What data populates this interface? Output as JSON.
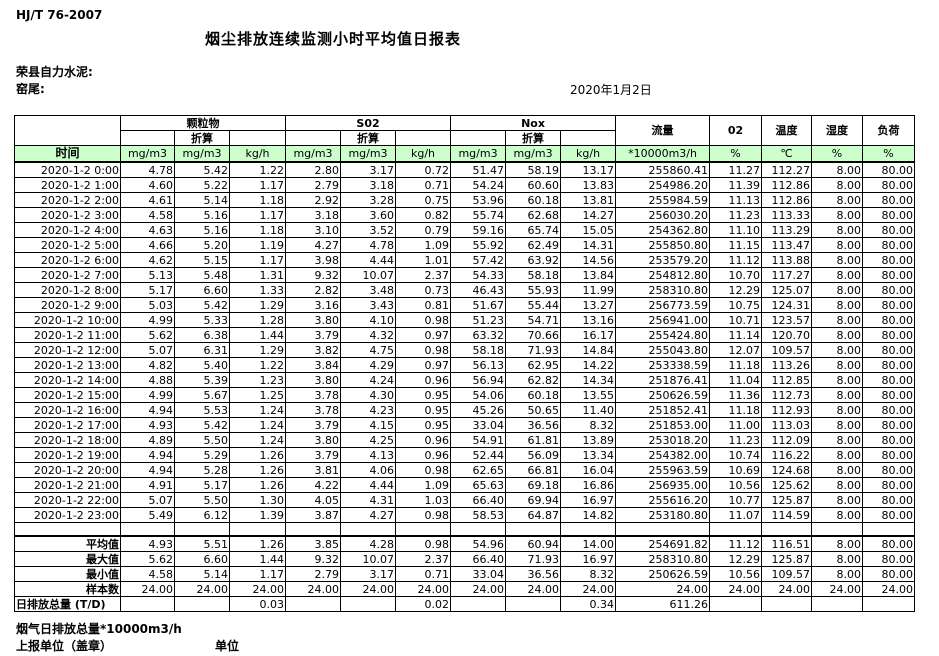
{
  "meta": {
    "standard_no": "HJ/T 76-2007",
    "title": "烟尘排放连续监测小时平均值日报表",
    "company": "荣县自力水泥:",
    "location": "窑尾:",
    "date": "2020年1月2日"
  },
  "table": {
    "time_label": "时间",
    "converted_label": "折算",
    "groups": {
      "pm": "颗粒物",
      "so2": "S02",
      "nox": "Nox",
      "flow": "流量",
      "o2": "02",
      "temp": "温度",
      "humidity": "湿度",
      "load": "负荷"
    },
    "units": [
      "mg/m3",
      "mg/m3",
      "kg/h",
      "mg/m3",
      "mg/m3",
      "kg/h",
      "mg/m3",
      "mg/m3",
      "kg/h",
      "*10000m3/h",
      "%",
      "℃",
      "%",
      "%"
    ],
    "rows": [
      {
        "time": "2020-1-2 0:00",
        "values": [
          "4.78",
          "5.42",
          "1.22",
          "2.80",
          "3.17",
          "0.72",
          "51.47",
          "58.19",
          "13.17",
          "255860.41",
          "11.27",
          "112.27",
          "8.00",
          "80.00"
        ]
      },
      {
        "time": "2020-1-2 1:00",
        "values": [
          "4.60",
          "5.22",
          "1.17",
          "2.79",
          "3.18",
          "0.71",
          "54.24",
          "60.60",
          "13.83",
          "254986.20",
          "11.39",
          "112.86",
          "8.00",
          "80.00"
        ]
      },
      {
        "time": "2020-1-2 2:00",
        "values": [
          "4.61",
          "5.14",
          "1.18",
          "2.92",
          "3.28",
          "0.75",
          "53.96",
          "60.18",
          "13.81",
          "255984.59",
          "11.13",
          "112.86",
          "8.00",
          "80.00"
        ]
      },
      {
        "time": "2020-1-2 3:00",
        "values": [
          "4.58",
          "5.16",
          "1.17",
          "3.18",
          "3.60",
          "0.82",
          "55.74",
          "62.68",
          "14.27",
          "256030.20",
          "11.23",
          "113.33",
          "8.00",
          "80.00"
        ]
      },
      {
        "time": "2020-1-2 4:00",
        "values": [
          "4.63",
          "5.16",
          "1.18",
          "3.10",
          "3.52",
          "0.79",
          "59.16",
          "65.74",
          "15.05",
          "254362.80",
          "11.10",
          "113.29",
          "8.00",
          "80.00"
        ]
      },
      {
        "time": "2020-1-2 5:00",
        "values": [
          "4.66",
          "5.20",
          "1.19",
          "4.27",
          "4.78",
          "1.09",
          "55.92",
          "62.49",
          "14.31",
          "255850.80",
          "11.15",
          "113.47",
          "8.00",
          "80.00"
        ]
      },
      {
        "time": "2020-1-2 6:00",
        "values": [
          "4.62",
          "5.15",
          "1.17",
          "3.98",
          "4.44",
          "1.01",
          "57.42",
          "63.92",
          "14.56",
          "253579.20",
          "11.12",
          "113.88",
          "8.00",
          "80.00"
        ]
      },
      {
        "time": "2020-1-2 7:00",
        "values": [
          "5.13",
          "5.48",
          "1.31",
          "9.32",
          "10.07",
          "2.37",
          "54.33",
          "58.18",
          "13.84",
          "254812.80",
          "10.70",
          "117.27",
          "8.00",
          "80.00"
        ]
      },
      {
        "time": "2020-1-2 8:00",
        "values": [
          "5.17",
          "6.60",
          "1.33",
          "2.82",
          "3.48",
          "0.73",
          "46.43",
          "55.93",
          "11.99",
          "258310.80",
          "12.29",
          "125.07",
          "8.00",
          "80.00"
        ]
      },
      {
        "time": "2020-1-2 9:00",
        "values": [
          "5.03",
          "5.42",
          "1.29",
          "3.16",
          "3.43",
          "0.81",
          "51.67",
          "55.44",
          "13.27",
          "256773.59",
          "10.75",
          "124.31",
          "8.00",
          "80.00"
        ]
      },
      {
        "time": "2020-1-2 10:00",
        "values": [
          "4.99",
          "5.33",
          "1.28",
          "3.80",
          "4.10",
          "0.98",
          "51.23",
          "54.71",
          "13.16",
          "256941.00",
          "10.71",
          "123.57",
          "8.00",
          "80.00"
        ]
      },
      {
        "time": "2020-1-2 11:00",
        "values": [
          "5.62",
          "6.38",
          "1.44",
          "3.79",
          "4.32",
          "0.97",
          "63.32",
          "70.66",
          "16.17",
          "255424.80",
          "11.14",
          "120.70",
          "8.00",
          "80.00"
        ]
      },
      {
        "time": "2020-1-2 12:00",
        "values": [
          "5.07",
          "6.31",
          "1.29",
          "3.82",
          "4.75",
          "0.98",
          "58.18",
          "71.93",
          "14.84",
          "255043.80",
          "12.07",
          "109.57",
          "8.00",
          "80.00"
        ]
      },
      {
        "time": "2020-1-2 13:00",
        "values": [
          "4.82",
          "5.40",
          "1.22",
          "3.84",
          "4.29",
          "0.97",
          "56.13",
          "62.95",
          "14.22",
          "253338.59",
          "11.18",
          "113.26",
          "8.00",
          "80.00"
        ]
      },
      {
        "time": "2020-1-2 14:00",
        "values": [
          "4.88",
          "5.39",
          "1.23",
          "3.80",
          "4.24",
          "0.96",
          "56.94",
          "62.82",
          "14.34",
          "251876.41",
          "11.04",
          "112.85",
          "8.00",
          "80.00"
        ]
      },
      {
        "time": "2020-1-2 15:00",
        "values": [
          "4.99",
          "5.67",
          "1.25",
          "3.78",
          "4.30",
          "0.95",
          "54.06",
          "60.18",
          "13.55",
          "250626.59",
          "11.36",
          "112.73",
          "8.00",
          "80.00"
        ]
      },
      {
        "time": "2020-1-2 16:00",
        "values": [
          "4.94",
          "5.53",
          "1.24",
          "3.78",
          "4.23",
          "0.95",
          "45.26",
          "50.65",
          "11.40",
          "251852.41",
          "11.18",
          "112.93",
          "8.00",
          "80.00"
        ]
      },
      {
        "time": "2020-1-2 17:00",
        "values": [
          "4.93",
          "5.42",
          "1.24",
          "3.79",
          "4.15",
          "0.95",
          "33.04",
          "36.56",
          "8.32",
          "251853.00",
          "11.00",
          "113.03",
          "8.00",
          "80.00"
        ]
      },
      {
        "time": "2020-1-2 18:00",
        "values": [
          "4.89",
          "5.50",
          "1.24",
          "3.80",
          "4.25",
          "0.96",
          "54.91",
          "61.81",
          "13.89",
          "253018.20",
          "11.23",
          "112.09",
          "8.00",
          "80.00"
        ]
      },
      {
        "time": "2020-1-2 19:00",
        "values": [
          "4.94",
          "5.29",
          "1.26",
          "3.79",
          "4.13",
          "0.96",
          "52.44",
          "56.09",
          "13.34",
          "254382.00",
          "10.74",
          "116.22",
          "8.00",
          "80.00"
        ]
      },
      {
        "time": "2020-1-2 20:00",
        "values": [
          "4.94",
          "5.28",
          "1.26",
          "3.81",
          "4.06",
          "0.98",
          "62.65",
          "66.81",
          "16.04",
          "255963.59",
          "10.69",
          "124.68",
          "8.00",
          "80.00"
        ]
      },
      {
        "time": "2020-1-2 21:00",
        "values": [
          "4.91",
          "5.17",
          "1.26",
          "4.22",
          "4.44",
          "1.09",
          "65.63",
          "69.18",
          "16.86",
          "256935.00",
          "10.56",
          "125.62",
          "8.00",
          "80.00"
        ]
      },
      {
        "time": "2020-1-2 22:00",
        "values": [
          "5.07",
          "5.50",
          "1.30",
          "4.05",
          "4.31",
          "1.03",
          "66.40",
          "69.94",
          "16.97",
          "255616.20",
          "10.77",
          "125.87",
          "8.00",
          "80.00"
        ]
      },
      {
        "time": "2020-1-2 23:00",
        "values": [
          "5.49",
          "6.12",
          "1.39",
          "3.87",
          "4.27",
          "0.98",
          "58.53",
          "64.87",
          "14.82",
          "253180.80",
          "11.07",
          "114.59",
          "8.00",
          "80.00"
        ]
      }
    ],
    "summary": [
      {
        "label": "平均值",
        "values": [
          "4.93",
          "5.51",
          "1.26",
          "3.85",
          "4.28",
          "0.98",
          "54.96",
          "60.94",
          "14.00",
          "254691.82",
          "11.12",
          "116.51",
          "8.00",
          "80.00"
        ]
      },
      {
        "label": "最大值",
        "values": [
          "5.62",
          "6.60",
          "1.44",
          "9.32",
          "10.07",
          "2.37",
          "66.40",
          "71.93",
          "16.97",
          "258310.80",
          "12.29",
          "125.87",
          "8.00",
          "80.00"
        ]
      },
      {
        "label": "最小值",
        "values": [
          "4.58",
          "5.14",
          "1.17",
          "2.79",
          "3.17",
          "0.71",
          "33.04",
          "36.56",
          "8.32",
          "250626.59",
          "10.56",
          "109.57",
          "8.00",
          "80.00"
        ]
      },
      {
        "label": "样本数",
        "values": [
          "24.00",
          "24.00",
          "24.00",
          "24.00",
          "24.00",
          "24.00",
          "24.00",
          "24.00",
          "24.00",
          "24.00",
          "24.00",
          "24.00",
          "24.00",
          "24.00"
        ]
      },
      {
        "label": "日排放总量 (T/D)",
        "values": [
          "",
          "",
          "0.03",
          "",
          "",
          "0.02",
          "",
          "",
          "0.34",
          "611.26",
          "",
          "",
          "",
          ""
        ]
      }
    ]
  },
  "footer": {
    "daily_flow_total": "烟气日排放总量*10000m3/h",
    "report_org": "上报单位（盖章）",
    "unit": "单位"
  }
}
